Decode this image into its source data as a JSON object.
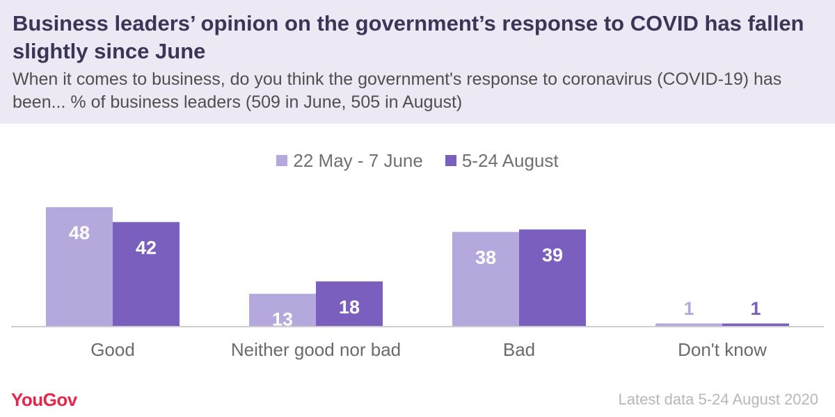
{
  "header": {
    "title": "Business leaders’ opinion on the government’s response to COVID has fallen slightly since June",
    "subtitle": "When it comes to business, do you think the government's response to coronavirus (COVID-19) has been... % of business leaders (509 in June, 505 in August)"
  },
  "colors": {
    "series1": "#b5a8dc",
    "series2": "#7b5fbf",
    "header_bg": "#ece8f4",
    "brand": "#e5264a"
  },
  "chart_data": {
    "type": "bar",
    "categories": [
      "Good",
      "Neither good nor bad",
      "Bad",
      "Don't know"
    ],
    "series": [
      {
        "name": "22 May - 7 June",
        "values": [
          48,
          13,
          38,
          1
        ]
      },
      {
        "name": "5-24 August",
        "values": [
          42,
          18,
          39,
          1
        ]
      }
    ],
    "ylim": [
      0,
      50
    ],
    "legend_position": "top-center",
    "grid": false
  },
  "footer": {
    "logo": "YouGov",
    "note": "Latest data 5-24 August 2020"
  }
}
